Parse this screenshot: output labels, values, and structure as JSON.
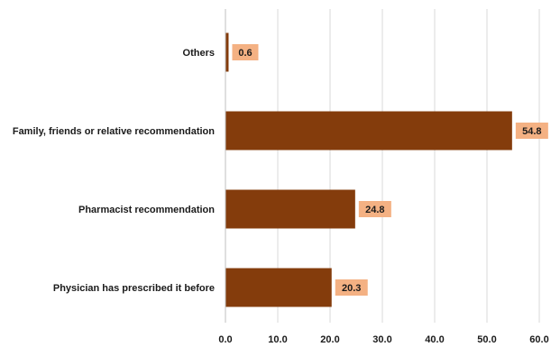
{
  "chart_data": {
    "type": "bar",
    "orientation": "horizontal",
    "categories": [
      "Others",
      "Family, friends or relative recommendation",
      "Pharmacist recommendation",
      "Physician has prescribed it before"
    ],
    "values": [
      0.6,
      54.8,
      24.8,
      20.3
    ],
    "value_labels": [
      "0.6",
      "54.8",
      "24.8",
      "20.3"
    ],
    "xlim": [
      0,
      60
    ],
    "x_ticks": [
      "0.0",
      "10.0",
      "20.0",
      "30.0",
      "40.0",
      "50.0",
      "60.0"
    ],
    "grid": true,
    "legend": "none",
    "bar_color": "#843C0C",
    "label_bg_color": "#F4B183"
  }
}
